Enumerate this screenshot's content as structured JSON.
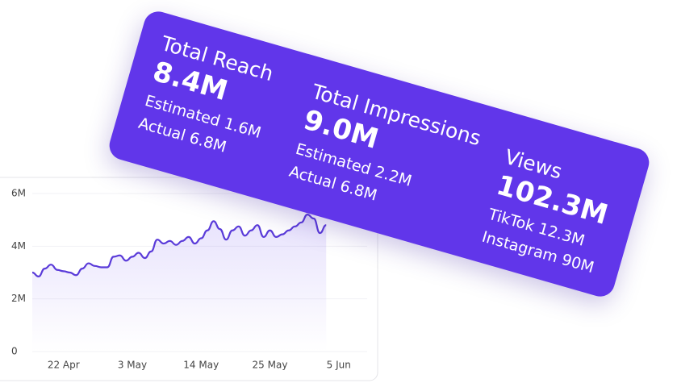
{
  "chart_data": {
    "type": "line",
    "categories": [
      null,
      null,
      null,
      null,
      null,
      "22 Apr",
      null,
      null,
      null,
      null,
      null,
      null,
      null,
      null,
      null,
      null,
      "3 May",
      null,
      null,
      null,
      null,
      null,
      null,
      null,
      null,
      null,
      null,
      "14 May",
      null,
      null,
      null,
      null,
      null,
      null,
      null,
      null,
      null,
      null,
      "25 May",
      null,
      null,
      null,
      null,
      null,
      null,
      null,
      null,
      null,
      null,
      "5 Jun"
    ],
    "series": [
      {
        "color": "#5a3bd9",
        "values": [
          3000000,
          2850000,
          3150000,
          3300000,
          3100000,
          3050000,
          3000000,
          2900000,
          3150000,
          3350000,
          3250000,
          3200000,
          3200000,
          3600000,
          3650000,
          3450000,
          3600000,
          3750000,
          3550000,
          3800000,
          4250000,
          4100000,
          4200000,
          4050000,
          4200000,
          4350000,
          4100000,
          4300000,
          4600000,
          4950000,
          4650000,
          4250000,
          4600000,
          4750000,
          4400000,
          4600000,
          4800000,
          4350000,
          4600000,
          4350000,
          4450000,
          4600000,
          4750000,
          4900000,
          5200000,
          5050000,
          4500000,
          4800000,
          null,
          null
        ]
      }
    ],
    "ylim": [
      0,
      6000000
    ],
    "yticks": [
      0,
      {
        "value": 2000000,
        "label": "2M"
      },
      {
        "value": 4000000,
        "label": "4M"
      },
      {
        "value": 6000000,
        "label": "6M"
      }
    ],
    "grid": true
  },
  "card": {
    "metrics": [
      {
        "title": "Total Reach",
        "value": "8.4M",
        "lines": [
          "Estimated 1.6M",
          "Actual 6.8M"
        ]
      },
      {
        "title": "Total Impressions",
        "value": "9.0M",
        "lines": [
          "Estimated 2.2M",
          "Actual 6.8M"
        ]
      },
      {
        "title": "Views",
        "value": "102.3M",
        "lines": [
          "TikTok 12.3M",
          "Instagram 90M"
        ]
      }
    ]
  }
}
